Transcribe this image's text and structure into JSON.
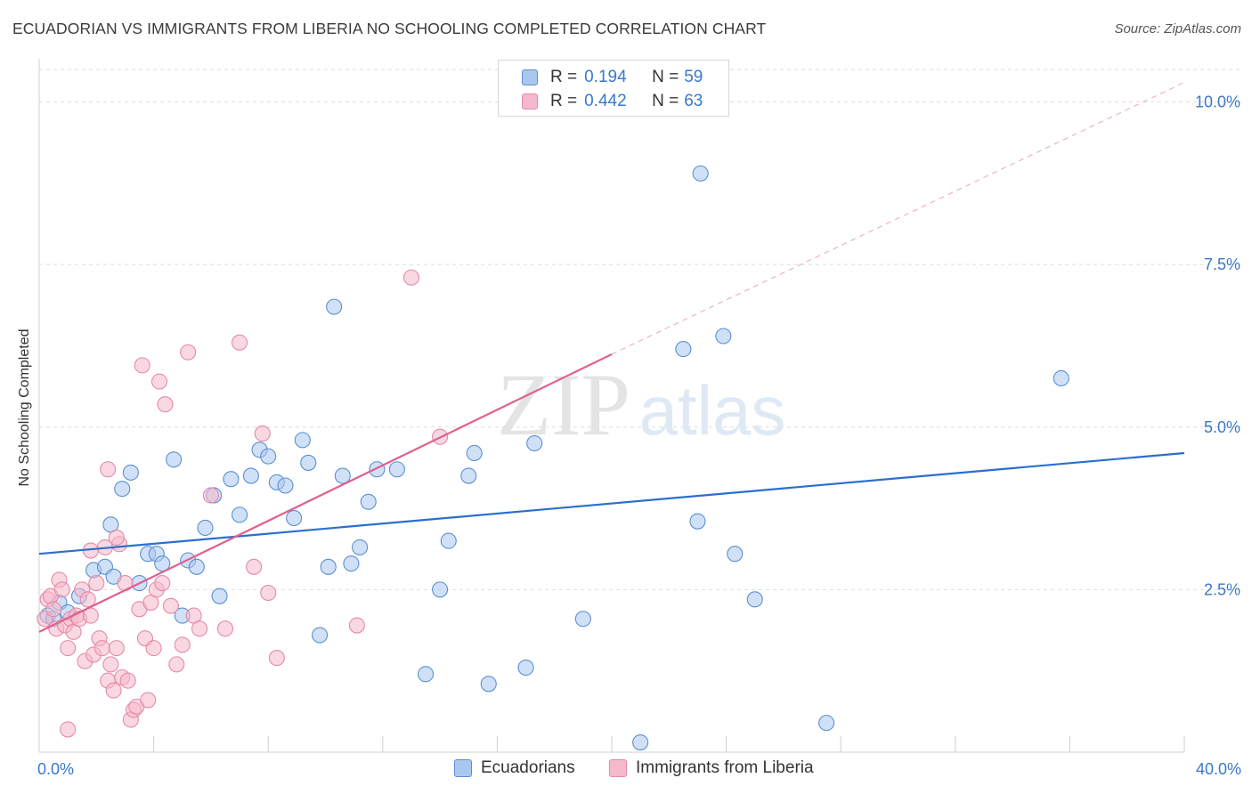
{
  "title": "ECUADORIAN VS IMMIGRANTS FROM LIBERIA NO SCHOOLING COMPLETED CORRELATION CHART",
  "source": "Source: ZipAtlas.com",
  "colors": {
    "blue_fill": "#a9c8f0",
    "blue_stroke": "#5b8fd4",
    "blue_line": "#2a6fce",
    "pink_fill": "#f6b8cb",
    "pink_stroke": "#e58aa6",
    "pink_line": "#e0608f",
    "axis_text": "#3a78c9",
    "grid": "#dedede"
  },
  "legend": {
    "rows": [
      {
        "label": "R =",
        "r": "0.194",
        "n_label": "N =",
        "n": "59",
        "color": "#a9c8f0",
        "border": "#5b8fd4"
      },
      {
        "label": "R =",
        "r": "0.442",
        "n_label": "N =",
        "n": "63",
        "color": "#f6b8cb",
        "border": "#e58aa6"
      }
    ]
  },
  "bottom_legend": [
    {
      "label": "Ecuadorians",
      "color": "#a9c8f0",
      "border": "#5b8fd4"
    },
    {
      "label": "Immigrants from Liberia",
      "color": "#f6b8cb",
      "border": "#e58aa6"
    }
  ],
  "watermark": {
    "zip": "ZIP",
    "atlas": "atlas"
  },
  "chart_data": {
    "type": "scatter",
    "title": "ECUADORIAN VS IMMIGRANTS FROM LIBERIA NO SCHOOLING COMPLETED CORRELATION CHART",
    "xlabel": "",
    "ylabel": "No Schooling Completed",
    "xlim": [
      0,
      40
    ],
    "ylim": [
      0,
      10.5
    ],
    "x_tick_labels": [
      {
        "value": 0,
        "label": "0.0%"
      },
      {
        "value": 40,
        "label": "40.0%"
      }
    ],
    "y_tick_labels": [
      {
        "value": 2.5,
        "label": "2.5%"
      },
      {
        "value": 5.0,
        "label": "5.0%"
      },
      {
        "value": 7.5,
        "label": "7.5%"
      },
      {
        "value": 10.0,
        "label": "10.0%"
      }
    ],
    "x_minor_ticks": [
      0,
      4,
      8,
      12,
      16,
      20,
      24,
      28,
      32,
      36,
      40
    ],
    "grid": true,
    "series": [
      {
        "name": "Ecuadorians",
        "R": 0.194,
        "N": 59,
        "trend": {
          "x0": 0,
          "y0": 3.05,
          "x1": 40,
          "y1": 4.6
        },
        "points": [
          [
            0.3,
            2.1
          ],
          [
            0.5,
            2.05
          ],
          [
            0.7,
            2.3
          ],
          [
            1.0,
            2.15
          ],
          [
            1.4,
            2.4
          ],
          [
            1.9,
            2.8
          ],
          [
            2.3,
            2.85
          ],
          [
            2.5,
            3.5
          ],
          [
            2.6,
            2.7
          ],
          [
            2.9,
            4.05
          ],
          [
            3.2,
            4.3
          ],
          [
            3.5,
            2.6
          ],
          [
            3.8,
            3.05
          ],
          [
            4.1,
            3.05
          ],
          [
            4.3,
            2.9
          ],
          [
            4.7,
            4.5
          ],
          [
            5.0,
            2.1
          ],
          [
            5.2,
            2.95
          ],
          [
            5.5,
            2.85
          ],
          [
            5.8,
            3.45
          ],
          [
            6.1,
            3.95
          ],
          [
            6.3,
            2.4
          ],
          [
            6.7,
            4.2
          ],
          [
            7.0,
            3.65
          ],
          [
            7.4,
            4.25
          ],
          [
            7.7,
            4.65
          ],
          [
            8.0,
            4.55
          ],
          [
            8.3,
            4.15
          ],
          [
            8.6,
            4.1
          ],
          [
            8.9,
            3.6
          ],
          [
            9.2,
            4.8
          ],
          [
            9.4,
            4.45
          ],
          [
            9.8,
            1.8
          ],
          [
            10.1,
            2.85
          ],
          [
            10.3,
            6.85
          ],
          [
            10.6,
            4.25
          ],
          [
            10.9,
            2.9
          ],
          [
            11.2,
            3.15
          ],
          [
            11.5,
            3.85
          ],
          [
            11.8,
            4.35
          ],
          [
            12.5,
            4.35
          ],
          [
            13.5,
            1.2
          ],
          [
            14.0,
            2.5
          ],
          [
            14.3,
            3.25
          ],
          [
            15.0,
            4.25
          ],
          [
            15.2,
            4.6
          ],
          [
            15.7,
            1.05
          ],
          [
            17.0,
            1.3
          ],
          [
            17.3,
            4.75
          ],
          [
            19.0,
            2.05
          ],
          [
            21.0,
            0.15
          ],
          [
            22.5,
            6.2
          ],
          [
            23.0,
            3.55
          ],
          [
            23.1,
            8.9
          ],
          [
            23.9,
            6.4
          ],
          [
            24.3,
            3.05
          ],
          [
            25.0,
            2.35
          ],
          [
            27.5,
            0.45
          ],
          [
            35.7,
            5.75
          ]
        ]
      },
      {
        "name": "Immigrants from Liberia",
        "R": 0.442,
        "N": 63,
        "trend": {
          "x0": 0,
          "y0": 1.85,
          "x1": 20,
          "y1": 6.12
        },
        "trend_dashed": {
          "x0": 20,
          "y0": 6.12,
          "x1": 40,
          "y1": 10.3
        },
        "points": [
          [
            0.2,
            2.05
          ],
          [
            0.3,
            2.35
          ],
          [
            0.4,
            2.4
          ],
          [
            0.5,
            2.2
          ],
          [
            0.6,
            1.9
          ],
          [
            0.7,
            2.65
          ],
          [
            0.8,
            2.5
          ],
          [
            0.9,
            1.95
          ],
          [
            1.0,
            1.6
          ],
          [
            1.1,
            2.05
          ],
          [
            1.2,
            1.85
          ],
          [
            1.3,
            2.1
          ],
          [
            1.4,
            2.05
          ],
          [
            1.5,
            2.5
          ],
          [
            1.6,
            1.4
          ],
          [
            1.7,
            2.35
          ],
          [
            1.8,
            2.1
          ],
          [
            1.9,
            1.5
          ],
          [
            2.0,
            2.6
          ],
          [
            2.1,
            1.75
          ],
          [
            2.2,
            1.6
          ],
          [
            2.3,
            3.15
          ],
          [
            2.4,
            1.1
          ],
          [
            2.5,
            1.35
          ],
          [
            2.6,
            0.95
          ],
          [
            2.7,
            1.6
          ],
          [
            2.8,
            3.2
          ],
          [
            2.9,
            1.15
          ],
          [
            3.0,
            2.6
          ],
          [
            3.1,
            1.1
          ],
          [
            3.2,
            0.5
          ],
          [
            3.3,
            0.65
          ],
          [
            3.4,
            0.7
          ],
          [
            3.5,
            2.2
          ],
          [
            3.6,
            5.95
          ],
          [
            3.7,
            1.75
          ],
          [
            3.8,
            0.8
          ],
          [
            3.9,
            2.3
          ],
          [
            4.0,
            1.6
          ],
          [
            4.1,
            2.5
          ],
          [
            4.2,
            5.7
          ],
          [
            4.3,
            2.6
          ],
          [
            4.4,
            5.35
          ],
          [
            4.6,
            2.25
          ],
          [
            4.8,
            1.35
          ],
          [
            5.0,
            1.65
          ],
          [
            5.2,
            6.15
          ],
          [
            5.4,
            2.1
          ],
          [
            5.6,
            1.9
          ],
          [
            6.0,
            3.95
          ],
          [
            6.5,
            1.9
          ],
          [
            7.0,
            6.3
          ],
          [
            7.5,
            2.85
          ],
          [
            7.8,
            4.9
          ],
          [
            8.0,
            2.45
          ],
          [
            8.3,
            1.45
          ],
          [
            11.1,
            1.95
          ],
          [
            13.0,
            7.3
          ],
          [
            14.0,
            4.85
          ],
          [
            1.0,
            0.35
          ],
          [
            2.4,
            4.35
          ],
          [
            1.8,
            3.1
          ],
          [
            2.7,
            3.3
          ]
        ]
      }
    ]
  }
}
